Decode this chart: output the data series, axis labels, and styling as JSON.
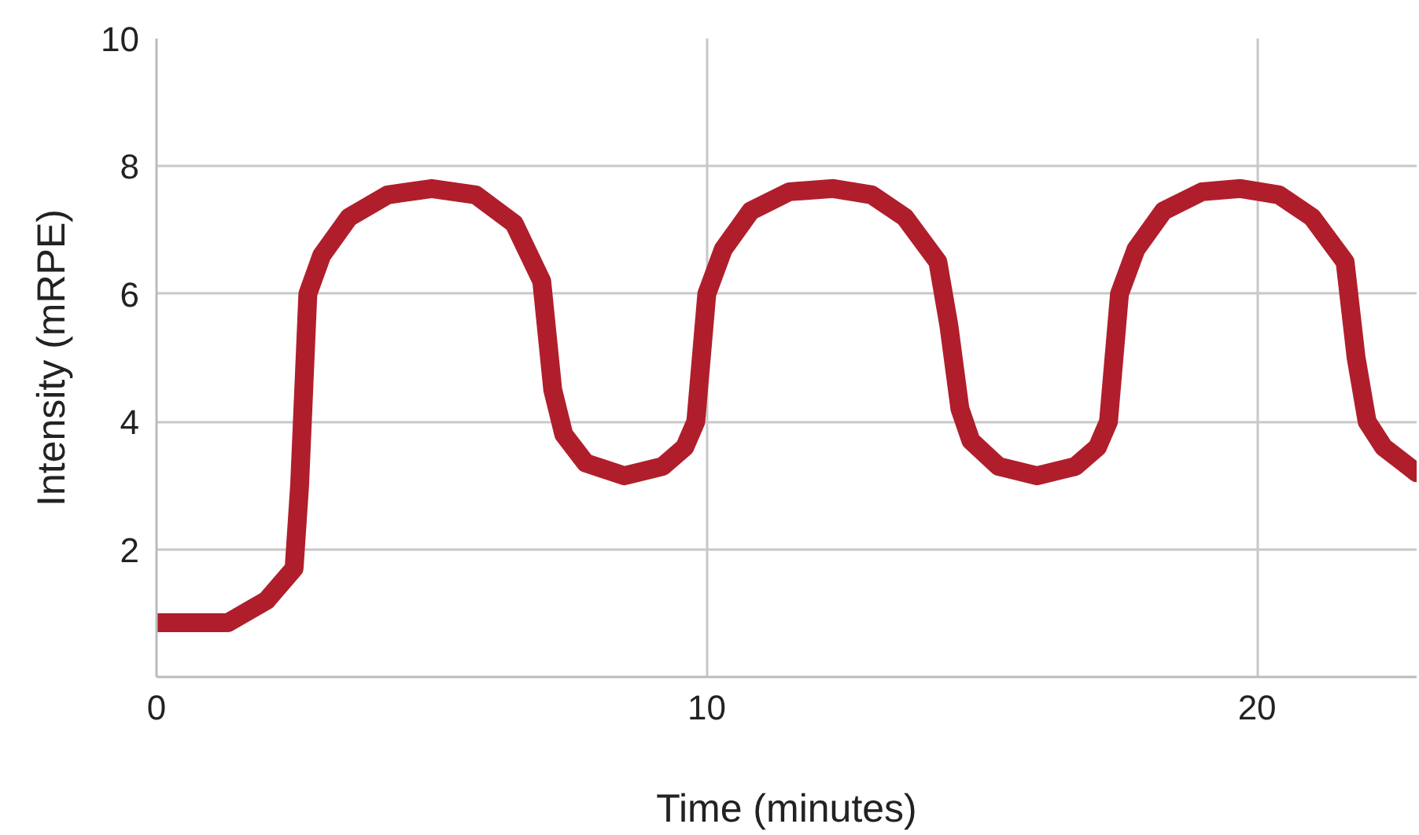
{
  "chart_data": {
    "type": "line",
    "xlabel": "Time (minutes)",
    "ylabel": "Intensity (mRPE)",
    "xlim": [
      0,
      22.9
    ],
    "ylim": [
      0,
      10
    ],
    "xticks": [
      0,
      10,
      20
    ],
    "yticks": [
      2,
      4,
      6,
      8,
      10
    ],
    "grid": true,
    "line_style": "solid",
    "series": [
      {
        "color": "#b01e2c",
        "x": [
          0,
          1.3,
          2.0,
          2.5,
          2.6,
          2.75,
          3.0,
          3.5,
          4.2,
          5.0,
          5.8,
          6.5,
          7.0,
          7.2,
          7.4,
          7.8,
          8.5,
          9.2,
          9.6,
          9.8,
          10.0,
          10.3,
          10.8,
          11.5,
          12.3,
          13.0,
          13.6,
          14.2,
          14.4,
          14.6,
          14.8,
          15.3,
          16.0,
          16.7,
          17.1,
          17.3,
          17.5,
          17.8,
          18.3,
          19.0,
          19.7,
          20.4,
          21.0,
          21.6,
          21.8,
          22.0,
          22.3,
          22.9
        ],
        "values": [
          0.85,
          0.85,
          1.2,
          1.7,
          3.0,
          6.0,
          6.6,
          7.2,
          7.55,
          7.65,
          7.55,
          7.1,
          6.2,
          4.5,
          3.8,
          3.35,
          3.15,
          3.3,
          3.6,
          4.0,
          6.0,
          6.7,
          7.3,
          7.6,
          7.65,
          7.55,
          7.2,
          6.5,
          5.5,
          4.2,
          3.7,
          3.3,
          3.15,
          3.3,
          3.6,
          4.0,
          6.0,
          6.7,
          7.3,
          7.6,
          7.65,
          7.55,
          7.2,
          6.5,
          5.0,
          4.0,
          3.6,
          3.2
        ]
      }
    ]
  }
}
